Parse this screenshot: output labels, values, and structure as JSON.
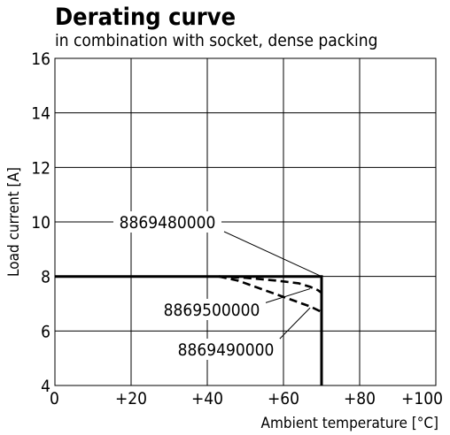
{
  "chart_data": {
    "type": "line",
    "title": "Derating curve",
    "subtitle": "in combination with socket, dense packing",
    "xlabel": "Ambient temperature [°C]",
    "ylabel": "Load current [A]",
    "xlim": [
      0,
      100
    ],
    "ylim": [
      4,
      16
    ],
    "grid": true,
    "x_ticks": [
      {
        "value": 0,
        "label": "0"
      },
      {
        "value": 20,
        "label": "+20"
      },
      {
        "value": 40,
        "label": "+40"
      },
      {
        "value": 60,
        "label": "+60"
      },
      {
        "value": 80,
        "label": "+80"
      },
      {
        "value": 100,
        "label": "+100"
      }
    ],
    "y_ticks": [
      {
        "value": 4,
        "label": "4"
      },
      {
        "value": 6,
        "label": "6"
      },
      {
        "value": 8,
        "label": "8"
      },
      {
        "value": 10,
        "label": "10"
      },
      {
        "value": 12,
        "label": "12"
      },
      {
        "value": 14,
        "label": "14"
      },
      {
        "value": 16,
        "label": "16"
      }
    ],
    "series": [
      {
        "name": "8869480000",
        "style": "solid",
        "x": [
          0,
          70,
          70
        ],
        "y": [
          8,
          8,
          4
        ]
      },
      {
        "name": "8869500000",
        "style": "dashed",
        "x": [
          43,
          50,
          58,
          64,
          67,
          69,
          70
        ],
        "y": [
          8,
          7.95,
          7.85,
          7.75,
          7.62,
          7.5,
          7.4
        ]
      },
      {
        "name": "8869490000",
        "style": "dashed",
        "x": [
          43,
          48,
          55,
          62,
          67,
          70
        ],
        "y": [
          8,
          7.85,
          7.5,
          7.15,
          6.9,
          6.7
        ]
      }
    ],
    "annotations": [
      {
        "text": "8869480000",
        "series": "8869480000",
        "target": [
          70,
          8
        ]
      },
      {
        "text": "8869500000",
        "series": "8869500000",
        "target": [
          67,
          7.55
        ]
      },
      {
        "text": "8869490000",
        "series": "8869490000",
        "target": [
          67,
          6.85
        ]
      }
    ]
  },
  "colors": {
    "line": "#000000",
    "grid": "#000000",
    "background": "#ffffff"
  }
}
